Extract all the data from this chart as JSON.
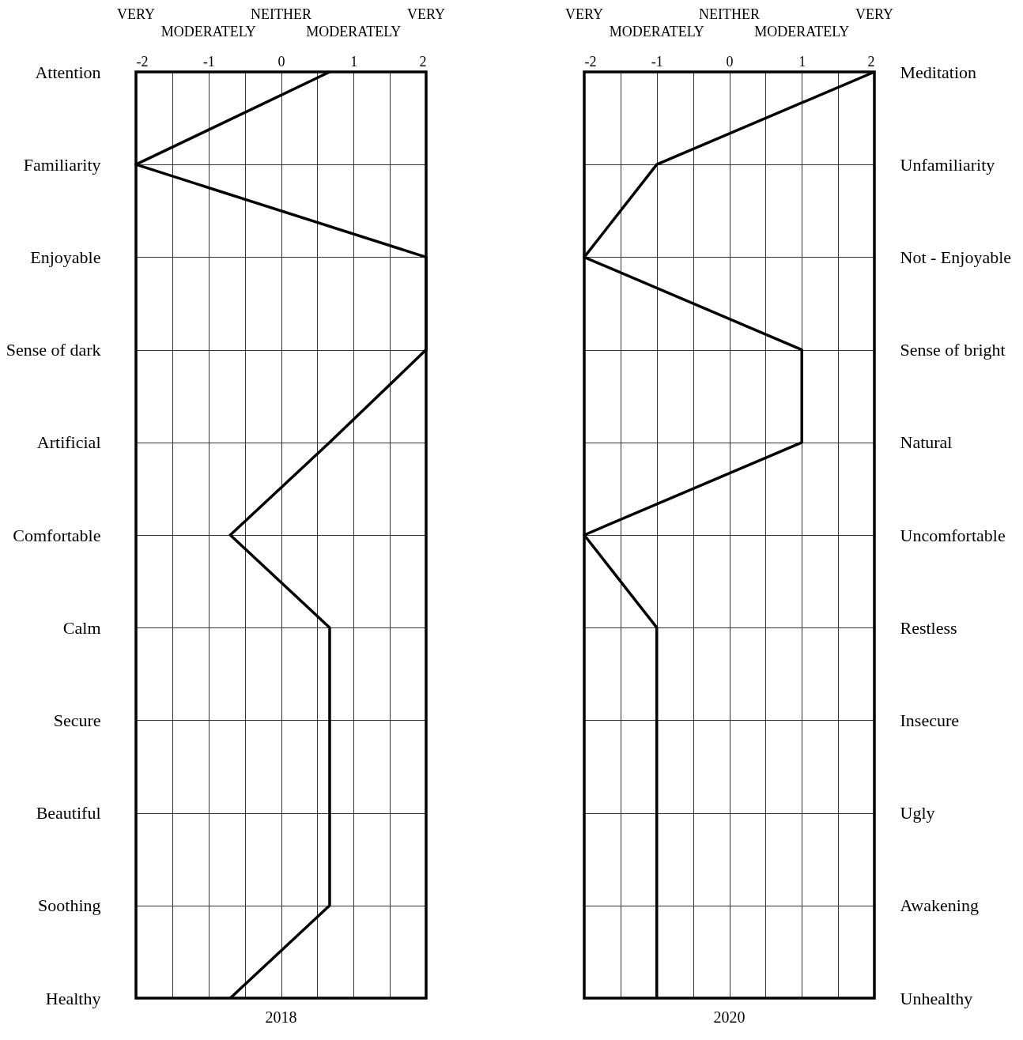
{
  "chart_data": [
    {
      "type": "line",
      "orientation": "horizontal",
      "xlabel": "2018",
      "categories": [
        "Attention",
        "Familiarity",
        "Enjoyable",
        "Sense of dark",
        "Artificial",
        "Comfortable",
        "Calm",
        "Secure",
        "Beautiful",
        "Soothing",
        "Healthy"
      ],
      "series": [
        {
          "color": "#000000",
          "values": [
            0.67,
            -2,
            2,
            2,
            0.67,
            -0.7,
            0.67,
            0.67,
            0.67,
            0.67,
            -0.7
          ]
        }
      ],
      "xlim": [
        -2,
        2
      ],
      "xticks": [
        -2,
        {
          "value": -1.5,
          "label": null
        },
        -1,
        {
          "value": -0.5,
          "label": null
        },
        0,
        {
          "value": 0.5,
          "label": null
        },
        1,
        {
          "value": 1.5,
          "label": null
        },
        2
      ],
      "annotations": [
        "VERY",
        "MODERATELY",
        "NEITHER",
        "MODERATELY",
        "VERY"
      ],
      "grid": true
    },
    {
      "type": "line",
      "orientation": "horizontal",
      "xlabel": "2020",
      "categories": [
        "Meditation",
        "Unfamiliarity",
        "Not - Enjoyable",
        "Sense of bright",
        "Natural",
        "Uncomfortable",
        "Restless",
        "Insecure",
        "Ugly",
        "Awakening",
        "Unhealthy"
      ],
      "series": [
        {
          "color": "#000000",
          "values": [
            2,
            -1,
            -2,
            1,
            1,
            -2,
            -1,
            -1,
            -1,
            -1,
            -1
          ]
        }
      ],
      "xlim": [
        -2,
        2
      ],
      "xticks": [
        -2,
        {
          "value": -1.5,
          "label": null
        },
        -1,
        {
          "value": -0.5,
          "label": null
        },
        0,
        {
          "value": 0.5,
          "label": null
        },
        1,
        {
          "value": 1.5,
          "label": null
        },
        2
      ],
      "annotations": [
        "VERY",
        "MODERATELY",
        "NEITHER",
        "MODERATELY",
        "VERY"
      ],
      "grid": true
    }
  ]
}
